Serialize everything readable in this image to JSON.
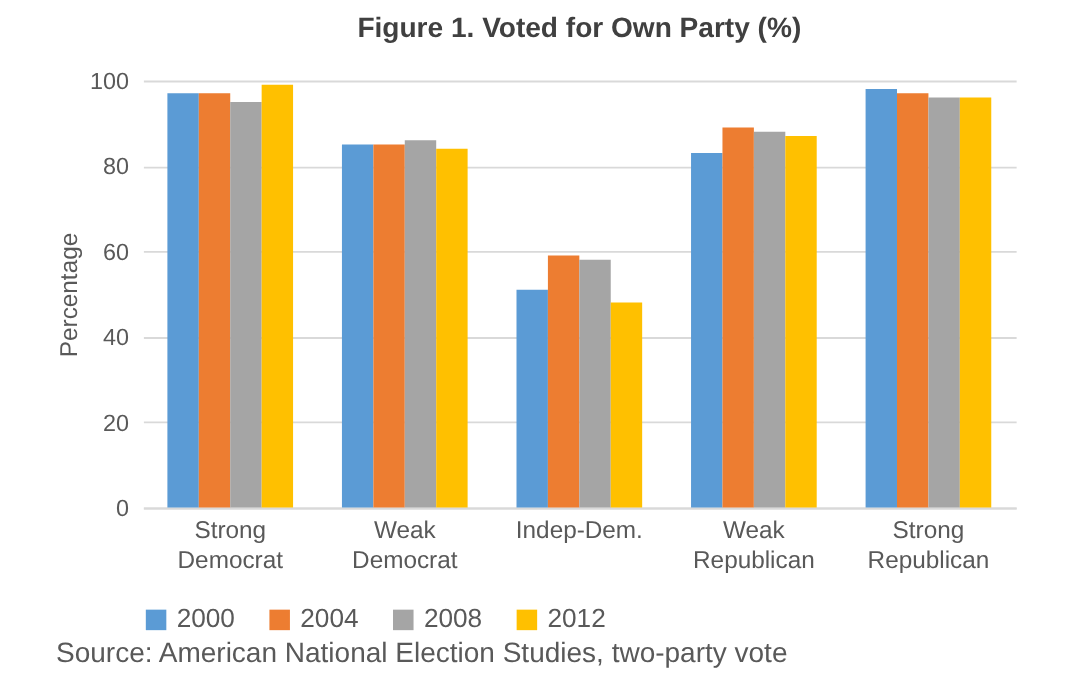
{
  "chart_data": {
    "type": "bar",
    "title": "Figure 1. Voted for Own Party (%)",
    "ylabel": "Percentage",
    "categories": [
      "Strong Democrat",
      "Weak Democrat",
      "Indep-Dem.",
      "Weak Republican",
      "Strong Republican"
    ],
    "series": [
      {
        "name": "2000",
        "color": "#5b9bd5",
        "values": [
          97,
          85,
          51,
          83,
          98
        ]
      },
      {
        "name": "2004",
        "color": "#ed7d31",
        "values": [
          97,
          85,
          59,
          89,
          97
        ]
      },
      {
        "name": "2008",
        "color": "#a5a5a5",
        "values": [
          95,
          86,
          58,
          88,
          96
        ]
      },
      {
        "name": "2012",
        "color": "#ffc000",
        "values": [
          99,
          84,
          48,
          87,
          96
        ]
      }
    ],
    "ylim": [
      0,
      100
    ],
    "yticks": [
      0,
      20,
      40,
      60,
      80,
      100
    ],
    "grid": "y",
    "legend": "bottom",
    "annotations": [
      "Source: American National Election Studies, two-party vote"
    ]
  }
}
